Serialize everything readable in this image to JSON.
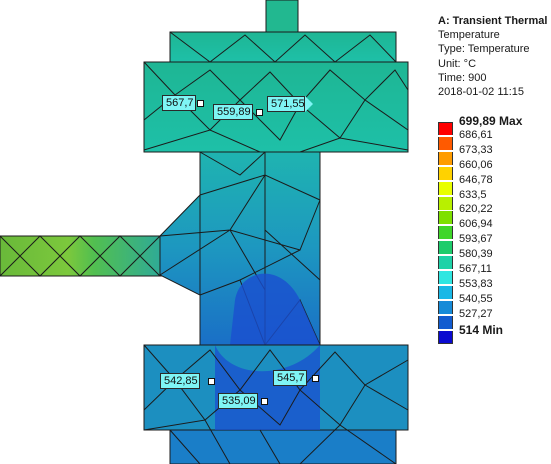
{
  "info_panel": {
    "title": "A: Transient Thermal",
    "result": "Temperature",
    "type": "Type: Temperature",
    "unit": "Unit: °C",
    "time": "Time: 900",
    "date": "2018-01-02 11:15"
  },
  "legend": [
    {
      "label": "699,89 Max",
      "color": "#ff0000",
      "bold": true
    },
    {
      "label": "686,61",
      "color": "#ff5a00"
    },
    {
      "label": "673,33",
      "color": "#ff9c00"
    },
    {
      "label": "660,06",
      "color": "#ffd200"
    },
    {
      "label": "646,78",
      "color": "#e9ff00"
    },
    {
      "label": "633,5",
      "color": "#b8f000"
    },
    {
      "label": "620,22",
      "color": "#7ee000"
    },
    {
      "label": "606,94",
      "color": "#3fd62a"
    },
    {
      "label": "593,67",
      "color": "#1ecc6c"
    },
    {
      "label": "580,39",
      "color": "#1ed2a8"
    },
    {
      "label": "567,11",
      "color": "#2fe6e1"
    },
    {
      "label": "553,83",
      "color": "#19b8e6"
    },
    {
      "label": "540,55",
      "color": "#168bd8"
    },
    {
      "label": "527,27",
      "color": "#125cd0"
    },
    {
      "label": "514 Min",
      "color": "#0a0ad0",
      "bold": true
    }
  ],
  "probes": [
    {
      "value": "567,7"
    },
    {
      "value": "559,89"
    },
    {
      "value": "571,55"
    },
    {
      "value": "542,85"
    },
    {
      "value": "535,09"
    },
    {
      "value": "545,7"
    }
  ],
  "colors": {
    "mesh_line": "#1b1b1b",
    "top_flange": "#25b48c",
    "body": "#1d93b6",
    "pipe": "#5fbf3a",
    "hot_spot": "#1540c8"
  }
}
